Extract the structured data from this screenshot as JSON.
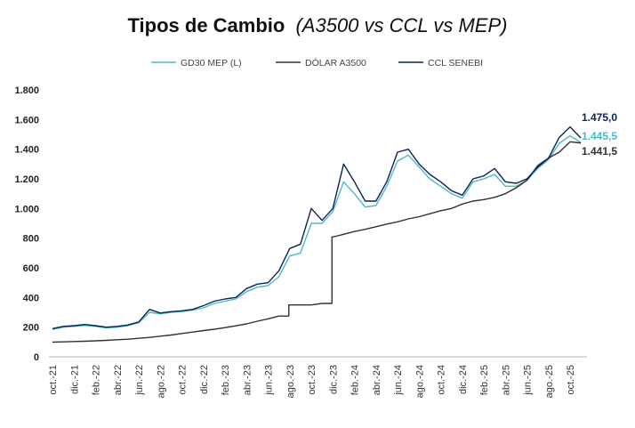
{
  "chart_data": {
    "type": "line",
    "title": "Tipos de Cambio",
    "subtitle": "(A3500 vs CCL vs MEP)",
    "xlabel": "",
    "ylabel": "",
    "ylim": [
      0,
      1800
    ],
    "yticks": [
      0,
      200,
      400,
      600,
      800,
      1000,
      1200,
      1400,
      1600,
      1800
    ],
    "ytick_labels": [
      "0",
      "200",
      "400",
      "600",
      "800",
      "1.000",
      "1.200",
      "1.400",
      "1.600",
      "1.800"
    ],
    "grid": false,
    "legend_position": "top",
    "x": [
      "2021-10",
      "2021-11",
      "2021-12",
      "2022-01",
      "2022-02",
      "2022-03",
      "2022-04",
      "2022-05",
      "2022-06",
      "2022-07",
      "2022-08",
      "2022-09",
      "2022-10",
      "2022-11",
      "2022-12",
      "2023-01",
      "2023-02",
      "2023-03",
      "2023-04",
      "2023-05",
      "2023-06",
      "2023-07",
      "2023-08",
      "2023-09",
      "2023-10",
      "2023-11",
      "2023-12",
      "2024-01",
      "2024-02",
      "2024-03",
      "2024-04",
      "2024-05",
      "2024-06",
      "2024-07",
      "2024-08",
      "2024-09",
      "2024-10",
      "2024-11",
      "2024-12",
      "2025-01",
      "2025-02",
      "2025-03",
      "2025-04",
      "2025-05",
      "2025-06",
      "2025-07",
      "2025-08",
      "2025-09",
      "2025-10",
      "2025-11"
    ],
    "xtick_labels": [
      "oct.-21",
      "dic.-21",
      "feb.-22",
      "abr.-22",
      "jun.-22",
      "ago.-22",
      "oct.-22",
      "dic.-22",
      "feb.-23",
      "abr.-23",
      "jun.-23",
      "ago.-23",
      "oct.-23",
      "dic.-23",
      "feb.-24",
      "abr.-24",
      "jun.-24",
      "ago.-24",
      "oct.-24",
      "dic.-24",
      "feb.-25",
      "abr.-25",
      "jun.-25",
      "ago.-25",
      "oct.-25"
    ],
    "series": [
      {
        "name": "GD30 MEP (L)",
        "color": "#4bb8c8",
        "end_label": "1.445,5",
        "values": [
          185,
          200,
          205,
          212,
          205,
          195,
          200,
          210,
          230,
          300,
          290,
          300,
          305,
          315,
          330,
          360,
          375,
          390,
          440,
          470,
          480,
          540,
          680,
          700,
          900,
          900,
          980,
          1180,
          1100,
          1010,
          1020,
          1150,
          1320,
          1360,
          1280,
          1200,
          1150,
          1100,
          1070,
          1180,
          1200,
          1230,
          1150,
          1150,
          1190,
          1270,
          1330,
          1440,
          1490,
          1445.5
        ]
      },
      {
        "name": "DÓLAR A3500",
        "color": "#333333",
        "end_label": "1.441,5",
        "values": [
          99,
          101,
          103,
          105,
          108,
          111,
          115,
          119,
          125,
          131,
          139,
          147,
          157,
          167,
          177,
          186,
          197,
          209,
          222,
          240,
          256,
          275,
          350,
          350,
          350,
          360,
          808,
          826,
          845,
          860,
          877,
          895,
          910,
          930,
          945,
          965,
          985,
          1000,
          1030,
          1050,
          1060,
          1075,
          1100,
          1140,
          1190,
          1290,
          1340,
          1380,
          1450,
          1441.5
        ]
      },
      {
        "name": "CCL SENEBI",
        "color": "#0d2357",
        "end_label": "1.475,0",
        "values": [
          190,
          205,
          210,
          218,
          210,
          200,
          205,
          215,
          235,
          320,
          295,
          305,
          310,
          320,
          345,
          375,
          390,
          400,
          460,
          490,
          500,
          580,
          730,
          760,
          1000,
          920,
          1000,
          1300,
          1180,
          1050,
          1050,
          1180,
          1380,
          1400,
          1300,
          1230,
          1180,
          1120,
          1090,
          1200,
          1220,
          1270,
          1180,
          1170,
          1200,
          1280,
          1340,
          1480,
          1550,
          1475.0
        ]
      }
    ]
  }
}
